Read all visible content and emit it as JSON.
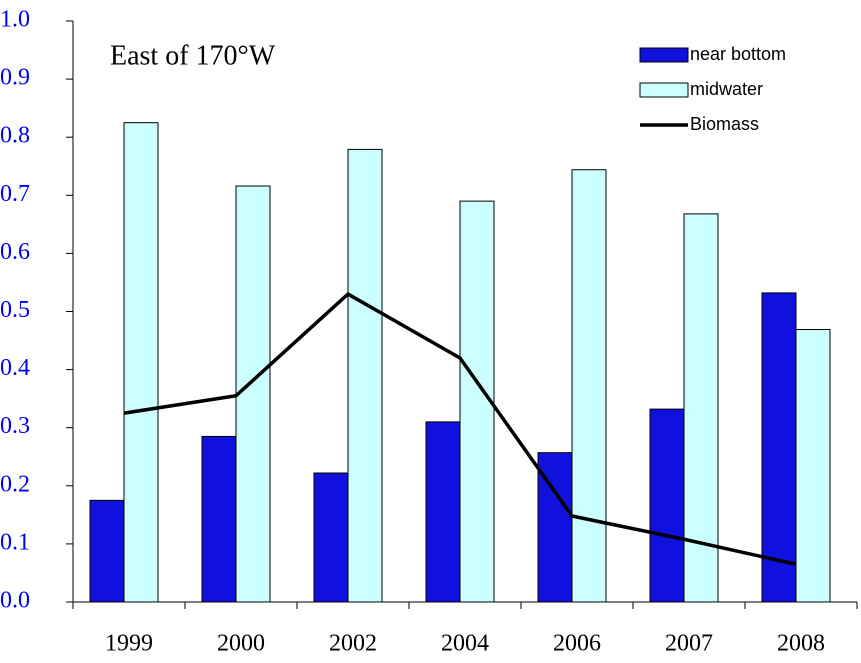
{
  "chart_data": {
    "type": "bar_line",
    "title": "East of 170°W",
    "categories": [
      "1999",
      "2000",
      "2002",
      "2004",
      "2006",
      "2007",
      "2008"
    ],
    "series": [
      {
        "name": "near bottom",
        "color": "#1111dd",
        "type": "bar",
        "values": [
          0.175,
          0.285,
          0.222,
          0.31,
          0.257,
          0.332,
          0.532
        ]
      },
      {
        "name": "midwater",
        "color": "#ccffff",
        "type": "bar",
        "values": [
          0.825,
          0.716,
          0.779,
          0.69,
          0.744,
          0.668,
          0.469
        ]
      },
      {
        "name": "Biomass",
        "color": "#000000",
        "type": "line",
        "values": [
          0.325,
          0.355,
          0.53,
          0.42,
          0.148,
          0.108,
          0.065
        ]
      }
    ],
    "ylim": [
      0,
      1
    ],
    "yticks": [
      {
        "value": 0,
        "label": "0.0"
      },
      0.1,
      0.2,
      0.3,
      0.4,
      0.5,
      0.6,
      0.7,
      0.8,
      0.9,
      {
        "value": 1,
        "label": "1.0"
      }
    ],
    "legend": "upper right",
    "grid": false
  }
}
